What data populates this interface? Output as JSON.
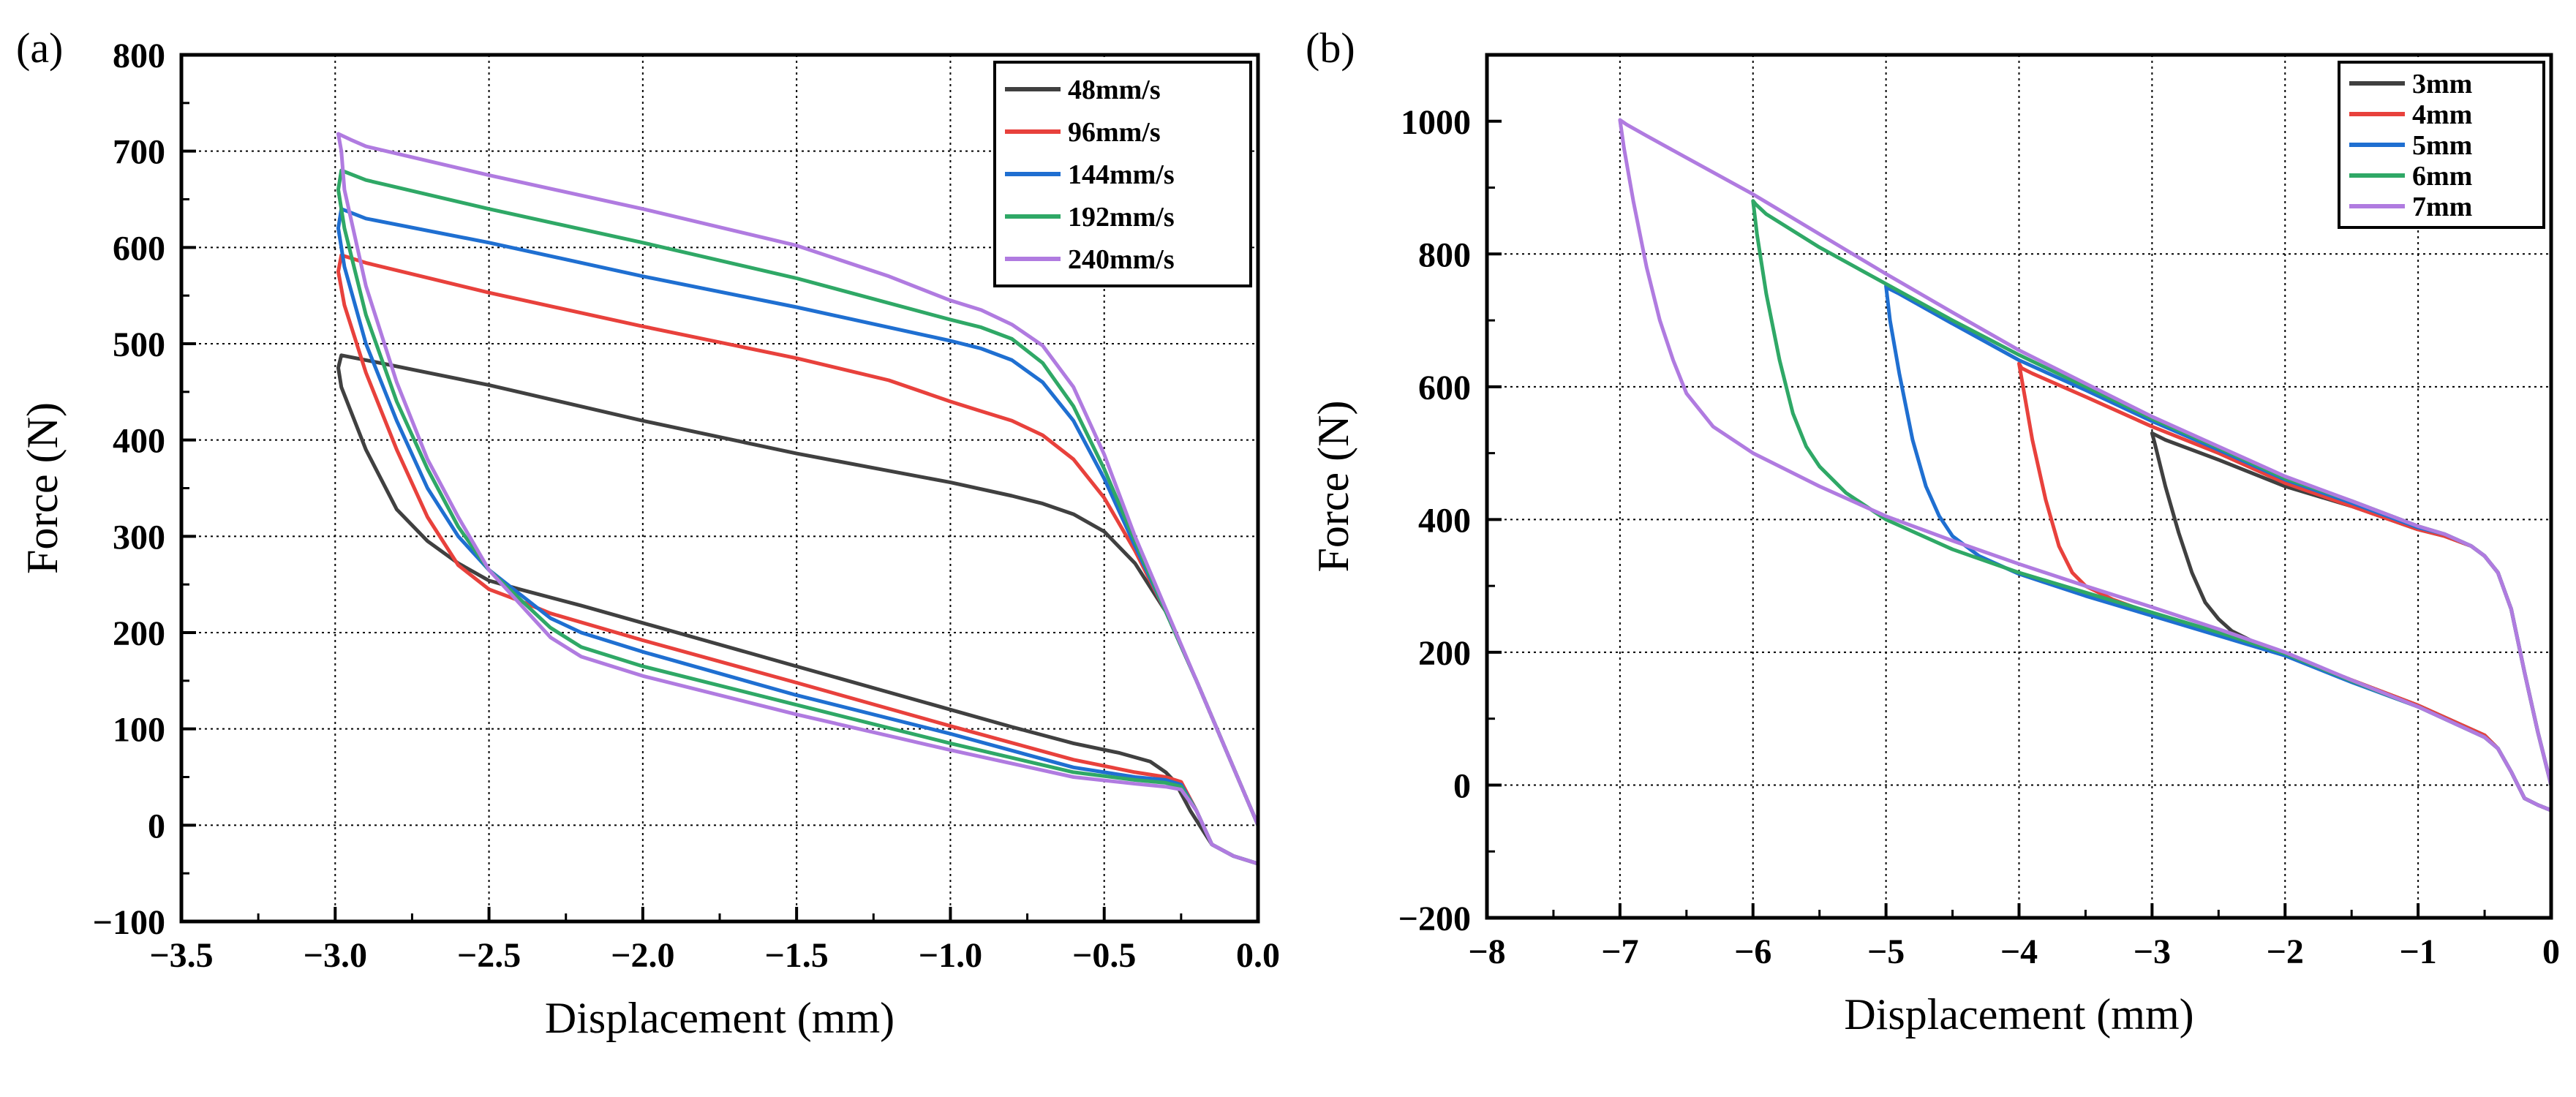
{
  "chart_data": [
    {
      "type": "line",
      "panel_label": "(a)",
      "xlabel": "Displacement (mm)",
      "ylabel": "Force (N)",
      "xlim": [
        -3.5,
        0.0
      ],
      "ylim": [
        -100,
        800
      ],
      "xticks": [
        -3.5,
        -3.0,
        -2.5,
        -2.0,
        -1.5,
        -1.0,
        -0.5,
        0.0
      ],
      "xtick_labels": [
        "−3.5",
        "−3.0",
        "−2.5",
        "−2.0",
        "−1.5",
        "−1.0",
        "−0.5",
        "0.0"
      ],
      "yticks": [
        -100,
        0,
        100,
        200,
        300,
        400,
        500,
        600,
        700,
        800
      ],
      "ytick_labels": [
        "−100",
        "0",
        "100",
        "200",
        "300",
        "400",
        "500",
        "600",
        "700",
        "800"
      ],
      "grid": true,
      "legend_position": "top-right",
      "series": [
        {
          "name": "48mm/s",
          "color": "#404040",
          "x": [
            0.0,
            -0.1,
            -0.2,
            -0.3,
            -0.4,
            -0.5,
            -0.6,
            -0.7,
            -0.8,
            -1.0,
            -1.5,
            -2.0,
            -2.5,
            -2.9,
            -2.98,
            -2.99,
            -2.98,
            -2.9,
            -2.8,
            -2.7,
            -2.6,
            -2.5,
            -2.4,
            -2.2,
            -2.0,
            -1.8,
            -1.5,
            -1.2,
            -1.0,
            -0.8,
            -0.6,
            -0.45,
            -0.35,
            -0.3,
            -0.27,
            -0.22,
            -0.15,
            -0.08,
            0.0
          ],
          "y": [
            0,
            75,
            150,
            222,
            272,
            305,
            323,
            334,
            342,
            356,
            386,
            420,
            457,
            483,
            488,
            475,
            455,
            390,
            328,
            295,
            272,
            254,
            245,
            228,
            210,
            192,
            165,
            138,
            120,
            102,
            85,
            75,
            66,
            55,
            45,
            15,
            -20,
            -32,
            -40
          ]
        },
        {
          "name": "96mm/s",
          "color": "#e8413c",
          "x": [
            0.0,
            -0.1,
            -0.2,
            -0.3,
            -0.4,
            -0.5,
            -0.6,
            -0.7,
            -0.8,
            -0.9,
            -1.0,
            -1.2,
            -1.5,
            -2.0,
            -2.5,
            -2.9,
            -2.98,
            -2.99,
            -2.97,
            -2.9,
            -2.8,
            -2.7,
            -2.6,
            -2.5,
            -2.4,
            -2.3,
            -2.0,
            -1.5,
            -1.0,
            -0.6,
            -0.4,
            -0.3,
            -0.25,
            -0.2,
            -0.15,
            -0.08,
            0.0
          ],
          "y": [
            0,
            75,
            150,
            222,
            285,
            340,
            380,
            405,
            420,
            430,
            440,
            462,
            485,
            518,
            553,
            584,
            592,
            575,
            540,
            470,
            390,
            320,
            270,
            245,
            233,
            220,
            192,
            148,
            103,
            68,
            55,
            50,
            45,
            15,
            -20,
            -32,
            -40
          ]
        },
        {
          "name": "144mm/s",
          "color": "#1f6fd1",
          "x": [
            0.0,
            -0.1,
            -0.2,
            -0.3,
            -0.4,
            -0.5,
            -0.6,
            -0.7,
            -0.8,
            -0.9,
            -1.0,
            -1.5,
            -2.0,
            -2.5,
            -2.9,
            -2.98,
            -2.99,
            -2.97,
            -2.9,
            -2.8,
            -2.7,
            -2.6,
            -2.5,
            -2.4,
            -2.3,
            -2.2,
            -2.0,
            -1.5,
            -1.0,
            -0.6,
            -0.4,
            -0.3,
            -0.25,
            -0.2,
            -0.15,
            -0.08,
            0.0
          ],
          "y": [
            0,
            75,
            150,
            222,
            290,
            360,
            420,
            460,
            483,
            495,
            503,
            538,
            570,
            605,
            630,
            640,
            620,
            580,
            500,
            420,
            350,
            300,
            265,
            240,
            215,
            200,
            180,
            135,
            95,
            60,
            50,
            47,
            42,
            15,
            -20,
            -32,
            -40
          ]
        },
        {
          "name": "192mm/s",
          "color": "#2fa866",
          "x": [
            0.0,
            -0.1,
            -0.2,
            -0.3,
            -0.4,
            -0.5,
            -0.6,
            -0.7,
            -0.8,
            -0.9,
            -1.0,
            -1.5,
            -2.0,
            -2.5,
            -2.9,
            -2.98,
            -2.99,
            -2.97,
            -2.9,
            -2.8,
            -2.7,
            -2.6,
            -2.5,
            -2.4,
            -2.3,
            -2.2,
            -2.0,
            -1.5,
            -1.0,
            -0.6,
            -0.4,
            -0.3,
            -0.25,
            -0.2,
            -0.15,
            -0.08,
            0.0
          ],
          "y": [
            0,
            75,
            150,
            222,
            295,
            370,
            435,
            480,
            505,
            517,
            525,
            568,
            605,
            640,
            670,
            680,
            660,
            620,
            530,
            440,
            370,
            310,
            265,
            235,
            205,
            185,
            165,
            125,
            85,
            55,
            47,
            44,
            40,
            15,
            -20,
            -32,
            -40
          ]
        },
        {
          "name": "240mm/s",
          "color": "#b07be0",
          "x": [
            0.0,
            -0.1,
            -0.2,
            -0.3,
            -0.4,
            -0.5,
            -0.6,
            -0.7,
            -0.8,
            -0.9,
            -1.0,
            -1.2,
            -1.5,
            -2.0,
            -2.5,
            -2.9,
            -2.95,
            -2.99,
            -2.98,
            -2.97,
            -2.9,
            -2.8,
            -2.7,
            -2.6,
            -2.5,
            -2.4,
            -2.3,
            -2.2,
            -2.0,
            -1.5,
            -1.0,
            -0.6,
            -0.4,
            -0.3,
            -0.25,
            -0.2,
            -0.15,
            -0.08,
            0.0
          ],
          "y": [
            0,
            75,
            150,
            225,
            300,
            385,
            455,
            498,
            520,
            535,
            545,
            570,
            602,
            640,
            675,
            705,
            712,
            718,
            700,
            660,
            560,
            460,
            380,
            320,
            265,
            230,
            195,
            175,
            155,
            115,
            78,
            50,
            43,
            40,
            37,
            15,
            -20,
            -32,
            -40
          ]
        }
      ]
    },
    {
      "type": "line",
      "panel_label": "(b)",
      "xlabel": "Displacement (mm)",
      "ylabel": "Force (N)",
      "xlim": [
        -8,
        0
      ],
      "ylim": [
        -200,
        1100
      ],
      "xticks": [
        -8,
        -7,
        -6,
        -5,
        -4,
        -3,
        -2,
        -1,
        0
      ],
      "xtick_labels": [
        "−8",
        "−7",
        "−6",
        "−5",
        "−4",
        "−3",
        "−2",
        "−1",
        "0"
      ],
      "yticks": [
        -200,
        0,
        200,
        400,
        600,
        800,
        1000
      ],
      "ytick_labels": [
        "−200",
        "0",
        "200",
        "400",
        "600",
        "800",
        "1000"
      ],
      "grid": true,
      "legend_position": "top-right",
      "series": [
        {
          "name": "3mm",
          "color": "#404040",
          "x": [
            0.0,
            -0.1,
            -0.2,
            -0.3,
            -0.4,
            -0.5,
            -0.6,
            -0.8,
            -1.0,
            -1.5,
            -2.0,
            -2.5,
            -2.9,
            -2.98,
            -3.0,
            -2.98,
            -2.9,
            -2.8,
            -2.7,
            -2.6,
            -2.5,
            -2.4,
            -2.2,
            -2.0,
            -1.5,
            -1.0,
            -0.5,
            -0.4,
            -0.3,
            -0.2,
            -0.1,
            0.0
          ],
          "y": [
            0,
            80,
            170,
            265,
            320,
            345,
            360,
            375,
            385,
            420,
            450,
            490,
            520,
            528,
            530,
            515,
            450,
            380,
            320,
            275,
            250,
            232,
            212,
            198,
            158,
            120,
            75,
            55,
            20,
            -20,
            -30,
            -38
          ]
        },
        {
          "name": "4mm",
          "color": "#e8413c",
          "x": [
            0.0,
            -0.1,
            -0.2,
            -0.3,
            -0.4,
            -0.5,
            -0.6,
            -0.8,
            -1.0,
            -1.5,
            -2.0,
            -2.5,
            -3.0,
            -3.5,
            -3.9,
            -3.98,
            -4.0,
            -3.97,
            -3.9,
            -3.8,
            -3.7,
            -3.6,
            -3.5,
            -3.3,
            -3.0,
            -2.5,
            -2.0,
            -1.5,
            -1.0,
            -0.5,
            -0.4,
            -0.3,
            -0.2,
            -0.1,
            0.0
          ],
          "y": [
            0,
            80,
            170,
            265,
            320,
            345,
            360,
            375,
            385,
            420,
            455,
            500,
            540,
            585,
            620,
            628,
            635,
            600,
            520,
            430,
            360,
            320,
            300,
            280,
            258,
            228,
            198,
            158,
            120,
            75,
            55,
            20,
            -20,
            -30,
            -38
          ]
        },
        {
          "name": "5mm",
          "color": "#1f6fd1",
          "x": [
            0.0,
            -0.1,
            -0.2,
            -0.3,
            -0.4,
            -0.5,
            -0.6,
            -0.8,
            -1.0,
            -1.5,
            -2.0,
            -2.5,
            -3.0,
            -3.5,
            -4.0,
            -4.5,
            -4.9,
            -4.98,
            -5.0,
            -4.97,
            -4.9,
            -4.8,
            -4.7,
            -4.6,
            -4.5,
            -4.3,
            -4.0,
            -3.5,
            -3.0,
            -2.5,
            -2.0,
            -1.5,
            -1.0,
            -0.5,
            -0.4,
            -0.3,
            -0.2,
            -0.1,
            0.0
          ],
          "y": [
            0,
            80,
            170,
            265,
            320,
            345,
            360,
            378,
            388,
            425,
            460,
            505,
            548,
            595,
            640,
            695,
            740,
            748,
            752,
            700,
            620,
            520,
            450,
            405,
            375,
            345,
            318,
            285,
            255,
            225,
            195,
            155,
            118,
            72,
            55,
            20,
            -20,
            -30,
            -38
          ]
        },
        {
          "name": "6mm",
          "color": "#2fa866",
          "x": [
            0.0,
            -0.1,
            -0.2,
            -0.3,
            -0.4,
            -0.5,
            -0.6,
            -0.8,
            -1.0,
            -1.5,
            -2.0,
            -2.5,
            -3.0,
            -3.5,
            -4.0,
            -4.5,
            -5.0,
            -5.5,
            -5.9,
            -5.98,
            -6.0,
            -5.97,
            -5.9,
            -5.8,
            -5.7,
            -5.6,
            -5.5,
            -5.3,
            -5.0,
            -4.5,
            -4.0,
            -3.5,
            -3.0,
            -2.5,
            -2.0,
            -1.5,
            -1.0,
            -0.5,
            -0.4,
            -0.3,
            -0.2,
            -0.1,
            0.0
          ],
          "y": [
            0,
            80,
            170,
            265,
            320,
            345,
            360,
            378,
            390,
            428,
            462,
            508,
            552,
            600,
            648,
            700,
            755,
            810,
            860,
            875,
            880,
            830,
            740,
            640,
            560,
            510,
            480,
            440,
            400,
            355,
            320,
            290,
            260,
            230,
            198,
            157,
            118,
            72,
            55,
            20,
            -20,
            -30,
            -38
          ]
        },
        {
          "name": "7mm",
          "color": "#b07be0",
          "x": [
            0.0,
            -0.1,
            -0.2,
            -0.3,
            -0.4,
            -0.5,
            -0.6,
            -0.8,
            -1.0,
            -1.5,
            -2.0,
            -2.5,
            -3.0,
            -3.5,
            -4.0,
            -4.5,
            -5.0,
            -5.5,
            -6.0,
            -6.5,
            -6.8,
            -6.95,
            -7.0,
            -6.97,
            -6.9,
            -6.8,
            -6.7,
            -6.6,
            -6.5,
            -6.3,
            -6.0,
            -5.5,
            -5.0,
            -4.5,
            -4.0,
            -3.5,
            -3.0,
            -2.5,
            -2.0,
            -1.5,
            -1.0,
            -0.5,
            -0.4,
            -0.3,
            -0.2,
            -0.1,
            0.0
          ],
          "y": [
            0,
            80,
            170,
            265,
            320,
            345,
            360,
            378,
            390,
            428,
            465,
            510,
            555,
            605,
            655,
            712,
            770,
            830,
            890,
            945,
            978,
            995,
            1002,
            960,
            880,
            780,
            700,
            640,
            590,
            540,
            500,
            450,
            405,
            368,
            333,
            300,
            268,
            235,
            200,
            158,
            118,
            72,
            55,
            20,
            -20,
            -30,
            -38
          ]
        }
      ]
    }
  ]
}
